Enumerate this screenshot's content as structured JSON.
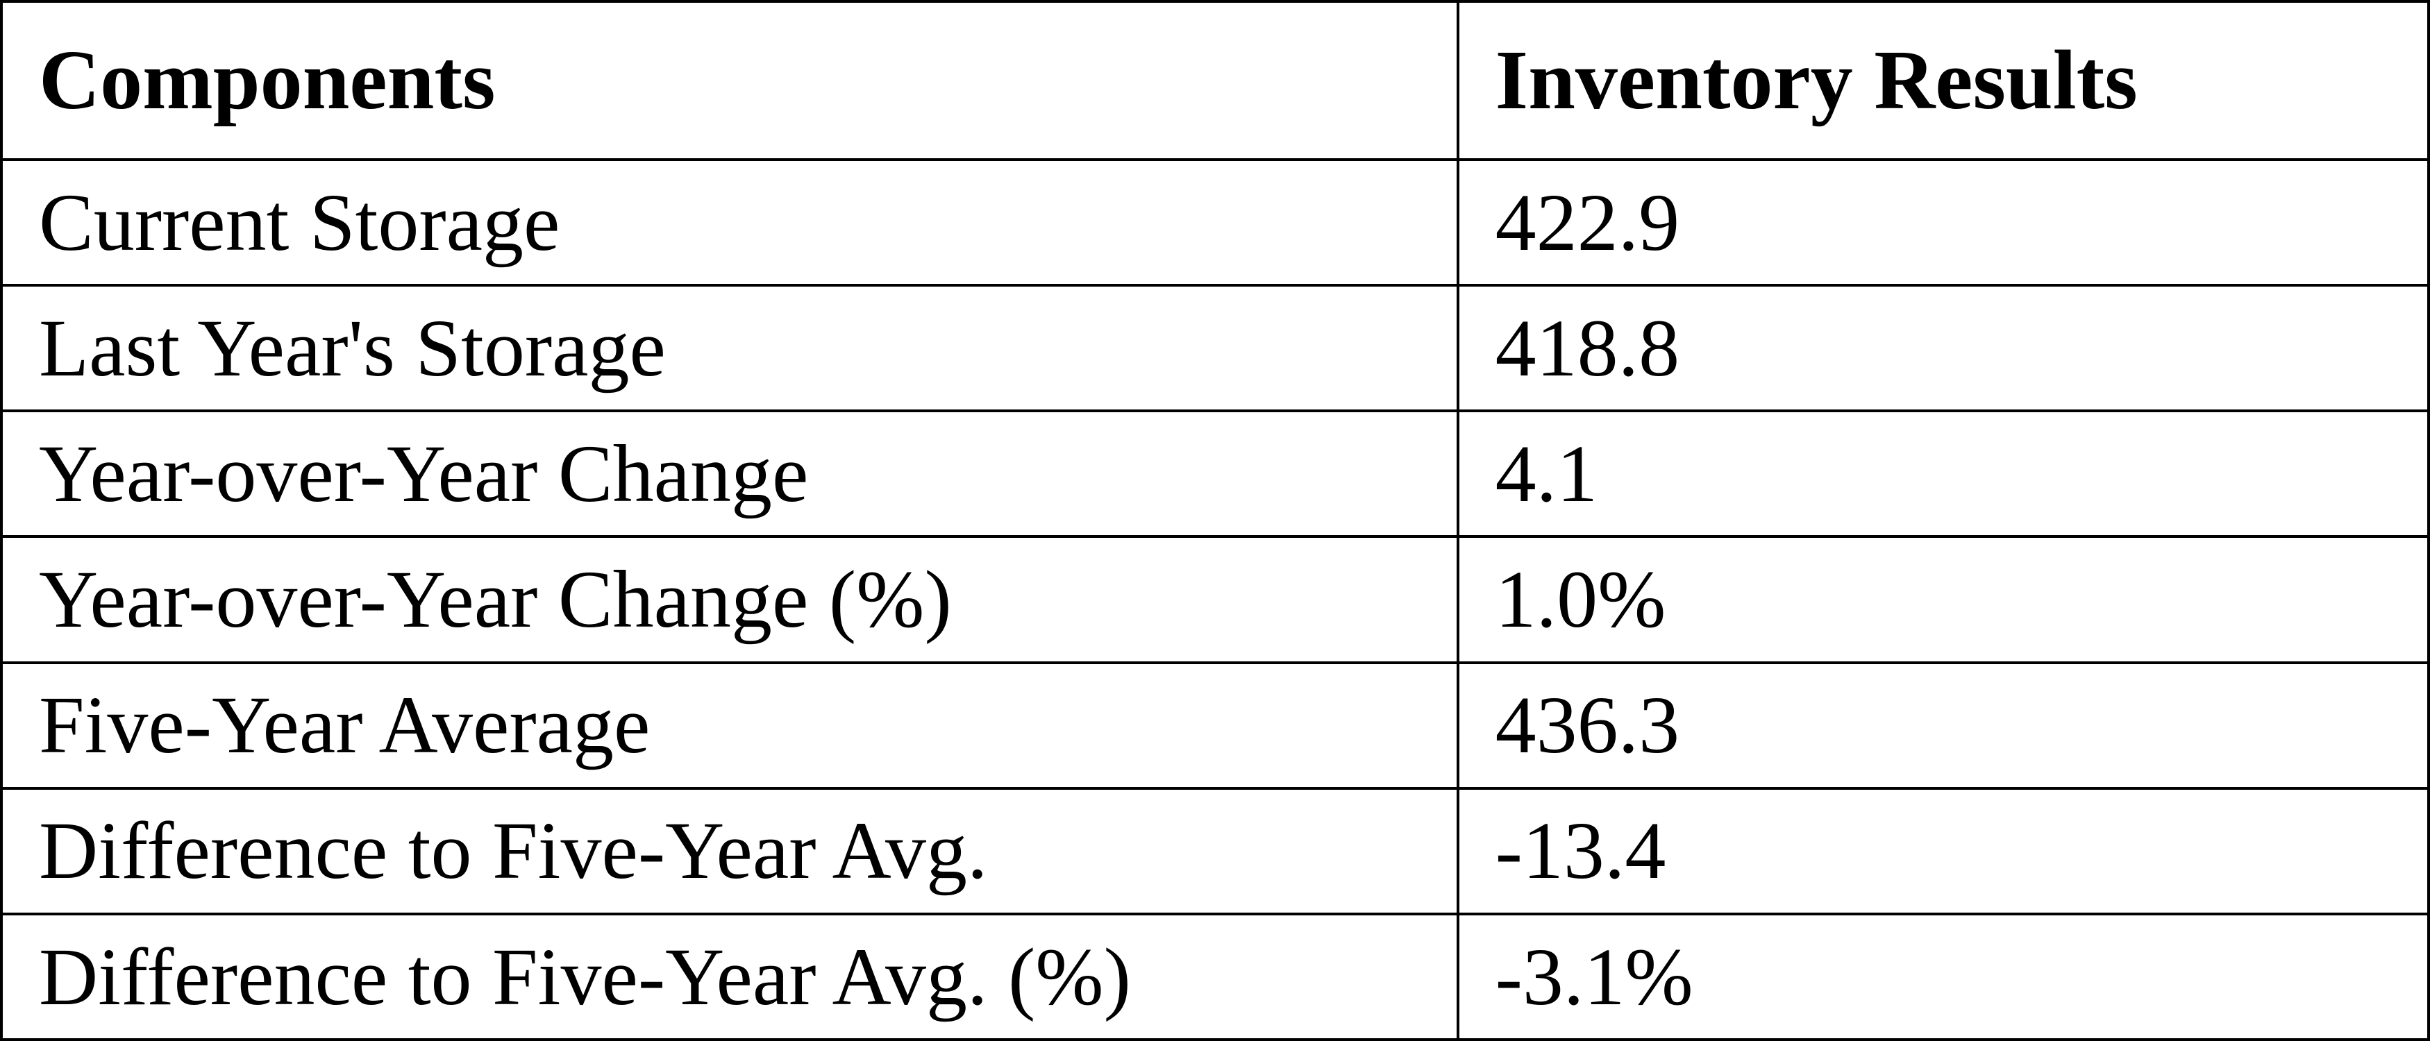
{
  "chart_data": {
    "type": "table",
    "columns": [
      "Components",
      "Inventory Results"
    ],
    "rows": [
      [
        "Current Storage",
        "422.9"
      ],
      [
        "Last Year's Storage",
        "418.8"
      ],
      [
        "Year-over-Year Change",
        "4.1"
      ],
      [
        "Year-over-Year Change (%)",
        "1.0%"
      ],
      [
        "Five-Year Average",
        "436.3"
      ],
      [
        "Difference to Five-Year Avg.",
        "-13.4"
      ],
      [
        "Difference to Five-Year Avg. (%)",
        "-3.1%"
      ]
    ]
  },
  "colors": {
    "border": "#000000",
    "background": "#ffffff",
    "text": "#000000"
  }
}
